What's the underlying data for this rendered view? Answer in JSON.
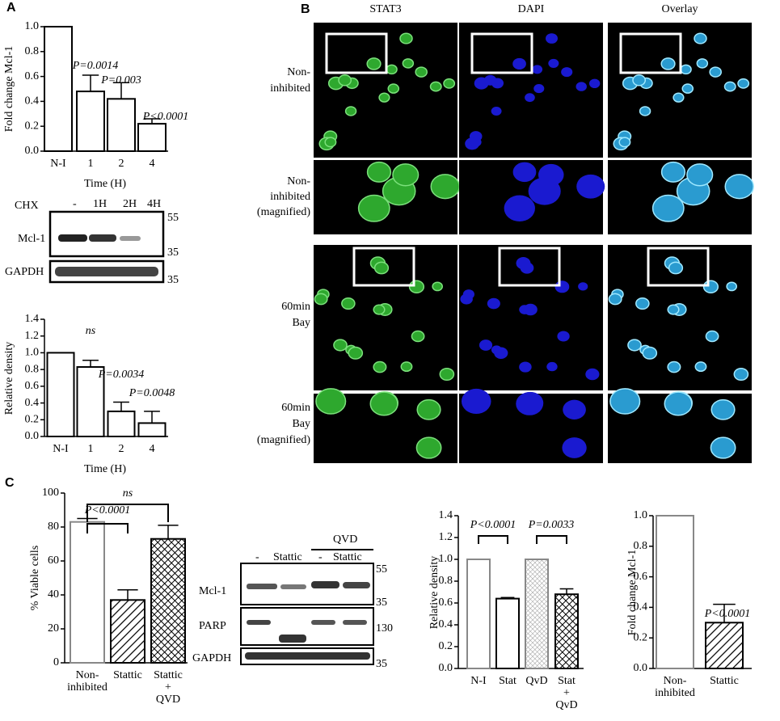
{
  "panel_labels": [
    "A",
    "B",
    "C"
  ],
  "chart_data": [
    {
      "type": "bar",
      "ylabel": "Fold change Mcl-1",
      "xlabel": "Time (H)",
      "categories": [
        "N-I",
        "1",
        "2",
        "4"
      ],
      "values": [
        1.0,
        0.48,
        0.42,
        0.22
      ],
      "errors": [
        null,
        0.13,
        0.13,
        0.04
      ],
      "ylim": [
        0,
        1.0
      ],
      "yticks": [
        {
          "value": 0,
          "label": "0.0"
        },
        0.2,
        0.4,
        0.6,
        0.8,
        {
          "value": 1,
          "label": "1.0"
        }
      ],
      "hatch": [
        "none",
        "none",
        "none",
        "none"
      ],
      "edgecolors": [
        "#000000",
        "#000000",
        "#000000",
        "#000000"
      ],
      "annotations": [
        "P=0.0014",
        "P=0.003",
        "P<0.0001"
      ]
    },
    {
      "type": "bar",
      "ylabel": "Relative density",
      "xlabel": "Time (H)",
      "categories": [
        "N-I",
        "1",
        "2",
        "4"
      ],
      "values": [
        1.0,
        0.83,
        0.3,
        0.16
      ],
      "errors": [
        null,
        0.08,
        0.11,
        0.14
      ],
      "ylim": [
        0,
        1.4
      ],
      "yticks": [
        {
          "value": 0,
          "label": "0.0"
        },
        0.2,
        0.4,
        0.6,
        0.8,
        {
          "value": 1,
          "label": "1.0"
        },
        1.2,
        1.4
      ],
      "hatch": [
        "none",
        "none",
        "none",
        "none"
      ],
      "edgecolors": [
        "#000000",
        "#000000",
        "#000000",
        "#000000"
      ],
      "annotations": [
        "ns",
        "P=0.0034",
        "P=0.0048"
      ]
    },
    {
      "type": "bar",
      "ylabel": "% Viable cells",
      "categories": [
        "Non-\ninhibited",
        "Stattic",
        "Stattic\n+\nQVD"
      ],
      "values": [
        83,
        37,
        73
      ],
      "errors": [
        2,
        6,
        8
      ],
      "ylim": [
        0,
        100
      ],
      "yticks": [
        0,
        20,
        40,
        60,
        80,
        100
      ],
      "hatch": [
        "none",
        "diagonal",
        "cross"
      ],
      "edgecolors": [
        "#888888",
        "#000000",
        "#000000"
      ],
      "annotations": [
        "ns",
        "P<0.0001"
      ]
    },
    {
      "type": "bar",
      "ylabel": "Relative density",
      "categories": [
        "N-I",
        "Stat",
        "QvD",
        "Stat\n+\nQvD"
      ],
      "values": [
        1.0,
        0.64,
        1.0,
        0.68
      ],
      "errors": [
        null,
        0.01,
        null,
        0.05
      ],
      "ylim": [
        0,
        1.4
      ],
      "yticks": [
        {
          "value": 0,
          "label": "0.0"
        },
        0.2,
        0.4,
        0.6,
        0.8,
        {
          "value": 1,
          "label": "1.0"
        },
        1.2,
        1.4
      ],
      "hatch": [
        "none",
        "none",
        "light",
        "cross"
      ],
      "edgecolors": [
        "#888888",
        "#000000",
        "#888888",
        "#000000"
      ],
      "annotations": [
        "P<0.0001",
        "P=0.0033"
      ]
    },
    {
      "type": "bar",
      "ylabel": "Fold change Mcl-1",
      "categories": [
        "Non-\ninhibited",
        "Stattic"
      ],
      "values": [
        1.0,
        0.3
      ],
      "errors": [
        null,
        0.12
      ],
      "ylim": [
        0,
        1.0
      ],
      "yticks": [
        {
          "value": 0,
          "label": "0.0"
        },
        0.2,
        0.4,
        0.6,
        0.8,
        {
          "value": 1,
          "label": "1.0"
        }
      ],
      "hatch": [
        "none",
        "diagonal"
      ],
      "edgecolors": [
        "#888888",
        "#000000"
      ],
      "annotations": [
        "P<0.0001"
      ]
    }
  ],
  "blot_a": {
    "treatment": "CHX",
    "lanes": [
      "-",
      "1H",
      "2H",
      "4H"
    ],
    "rows": [
      "Mcl-1",
      "GAPDH"
    ],
    "markers": [
      "55",
      "35",
      "35"
    ]
  },
  "blot_c": {
    "group": "QVD",
    "lanes": [
      "-",
      "Stattic",
      "-",
      "Stattic"
    ],
    "rows": [
      "Mcl-1",
      "PARP",
      "GAPDH"
    ],
    "markers": [
      "55",
      "35",
      "130",
      "35"
    ]
  },
  "microscopy": {
    "columns": [
      "STAT3",
      "DAPI",
      "Overlay"
    ],
    "rows": [
      [
        "Non-",
        "inhibited"
      ],
      [
        "Non-",
        "inhibited",
        "(magnified)"
      ],
      [
        "60min",
        "Bay"
      ],
      [
        "60min",
        "Bay",
        "(magnified)"
      ]
    ]
  }
}
